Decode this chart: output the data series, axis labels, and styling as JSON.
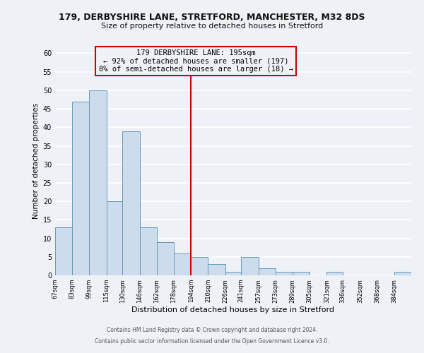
{
  "title1": "179, DERBYSHIRE LANE, STRETFORD, MANCHESTER, M32 8DS",
  "title2": "Size of property relative to detached houses in Stretford",
  "xlabel": "Distribution of detached houses by size in Stretford",
  "ylabel": "Number of detached properties",
  "footer1": "Contains HM Land Registry data © Crown copyright and database right 2024.",
  "footer2": "Contains public sector information licensed under the Open Government Licence v3.0.",
  "bin_edges": [
    67,
    83,
    99,
    115,
    130,
    146,
    162,
    178,
    194,
    210,
    226,
    241,
    257,
    273,
    289,
    305,
    321,
    336,
    352,
    368,
    384,
    400
  ],
  "bar_heights": [
    13,
    47,
    50,
    20,
    39,
    13,
    9,
    6,
    5,
    3,
    1,
    5,
    2,
    1,
    1,
    0,
    1,
    0,
    0,
    0,
    1
  ],
  "bar_color": "#ccdcec",
  "bar_edge_color": "#6699bb",
  "red_line_x": 194,
  "annotation_title": "179 DERBYSHIRE LANE: 195sqm",
  "annotation_line1": "← 92% of detached houses are smaller (197)",
  "annotation_line2": "8% of semi-detached houses are larger (18) →",
  "annotation_box_edge": "#cc0000",
  "ylim": [
    0,
    62
  ],
  "yticks": [
    0,
    5,
    10,
    15,
    20,
    25,
    30,
    35,
    40,
    45,
    50,
    55,
    60
  ],
  "tick_labels": [
    "67sqm",
    "83sqm",
    "99sqm",
    "115sqm",
    "130sqm",
    "146sqm",
    "162sqm",
    "178sqm",
    "194sqm",
    "210sqm",
    "226sqm",
    "241sqm",
    "257sqm",
    "273sqm",
    "289sqm",
    "305sqm",
    "321sqm",
    "336sqm",
    "352sqm",
    "368sqm",
    "384sqm"
  ],
  "background_color": "#eef2f7",
  "grid_color": "#ffffff",
  "title1_fontsize": 9.0,
  "title2_fontsize": 8.0,
  "ylabel_fontsize": 7.5,
  "xlabel_fontsize": 8.0,
  "tick_fontsize": 6.0,
  "ytick_fontsize": 7.0,
  "footer_fontsize": 5.5,
  "ann_fontsize": 7.5
}
